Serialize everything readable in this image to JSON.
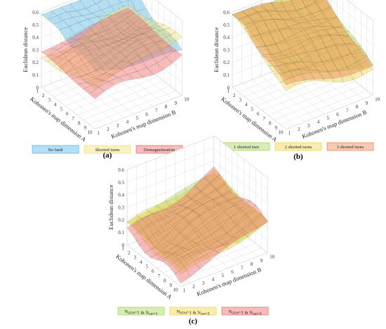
{
  "colors": {
    "blue": "#5cb8e6",
    "yellow": "#f2e27a",
    "red": "#f06b6b",
    "green": "#a9d65a",
    "orange": "#f08a3a",
    "mesh": "#4a6a3a",
    "grid": "#d6d6d6"
  },
  "chart_data": [
    {
      "type": "surface",
      "panel_label": "(a)",
      "xlabel": "Kohonen's map dimension A",
      "ylabel": "Kohonen's map dimension B",
      "zlabel": "Euclidean distance",
      "x_ticks": [
        "1",
        "2",
        "3",
        "4",
        "5",
        "6",
        "7",
        "8",
        "9",
        "10"
      ],
      "y_ticks": [
        "1",
        "2",
        "3",
        "4",
        "5",
        "6",
        "7",
        "8",
        "9",
        "10"
      ],
      "z_ticks": [
        "0",
        "0.1",
        "0.2",
        "0.3",
        "0.4",
        "0.5",
        "0.6"
      ],
      "zlim": [
        0,
        0.6
      ],
      "grid": true,
      "legend_position": "bottom",
      "series": [
        {
          "name": "No fault",
          "color": "#5cb8e6",
          "level": 0.5,
          "trend_a": -0.2,
          "trend_b": -0.1
        },
        {
          "name": "Shorted turns",
          "color": "#f2e27a",
          "level": 0.35,
          "trend_a": 0.1,
          "trend_b": 0.15
        },
        {
          "name": "Demagnetization",
          "color": "#f06b6b",
          "level": 0.3,
          "trend_a": -0.05,
          "trend_b": 0.08
        }
      ]
    },
    {
      "type": "surface",
      "panel_label": "(b)",
      "xlabel": "Kohonen's map dimension A",
      "ylabel": "Kohonen's map dimension B",
      "zlabel": "Euclidean distance",
      "x_ticks": [
        "1",
        "2",
        "3",
        "4",
        "5",
        "6",
        "7",
        "8",
        "9",
        "10"
      ],
      "y_ticks": [
        "1",
        "2",
        "3",
        "4",
        "5",
        "6",
        "7",
        "8",
        "9",
        "10"
      ],
      "z_ticks": [
        "0",
        "0.1",
        "0.2",
        "0.3",
        "0.4",
        "0.5",
        "0.6"
      ],
      "zlim": [
        0,
        0.6
      ],
      "grid": true,
      "legend_position": "bottom",
      "series": [
        {
          "name": "1 shorted turn",
          "color": "#a9d65a",
          "level": 0.45,
          "trend_a": -0.25,
          "trend_b": -0.15
        },
        {
          "name": "2 shorted turns",
          "color": "#f2d84a",
          "level": 0.4,
          "trend_a": -0.3,
          "trend_b": -0.1
        },
        {
          "name": "3 shorted turns",
          "color": "#f08a5a",
          "level": 0.42,
          "trend_a": -0.28,
          "trend_b": -0.12
        }
      ]
    },
    {
      "type": "surface",
      "panel_label": "(c)",
      "xlabel": "Kohonen's map dimension A",
      "ylabel": "Kohonen's map dimension B",
      "zlabel": "Euclidean distance",
      "x_ticks": [
        "1",
        "2",
        "3",
        "4",
        "5",
        "6",
        "7",
        "8",
        "9",
        "10"
      ],
      "y_ticks": [
        "1",
        "2",
        "3",
        "4",
        "5",
        "6",
        "7",
        "8",
        "9",
        "10"
      ],
      "z_ticks": [
        "0",
        "0.1",
        "0.2",
        "0.3",
        "0.4",
        "0.5",
        "0.6"
      ],
      "zlim": [
        0,
        0.6
      ],
      "grid": true,
      "legend_position": "bottom",
      "series": [
        {
          "name": "N_DEM=1 & N_SH=1",
          "color": "#a9d65a",
          "level": 0.22,
          "trend_a": -0.05,
          "trend_b": 0.12
        },
        {
          "name": "N_DEM=1 & N_SH=2",
          "color": "#f2d84a",
          "level": 0.2,
          "trend_a": -0.08,
          "trend_b": 0.15
        },
        {
          "name": "N_DEM=1 & N_SH=3",
          "color": "#f06b6b",
          "level": 0.18,
          "trend_a": -0.06,
          "trend_b": 0.22
        }
      ]
    }
  ]
}
